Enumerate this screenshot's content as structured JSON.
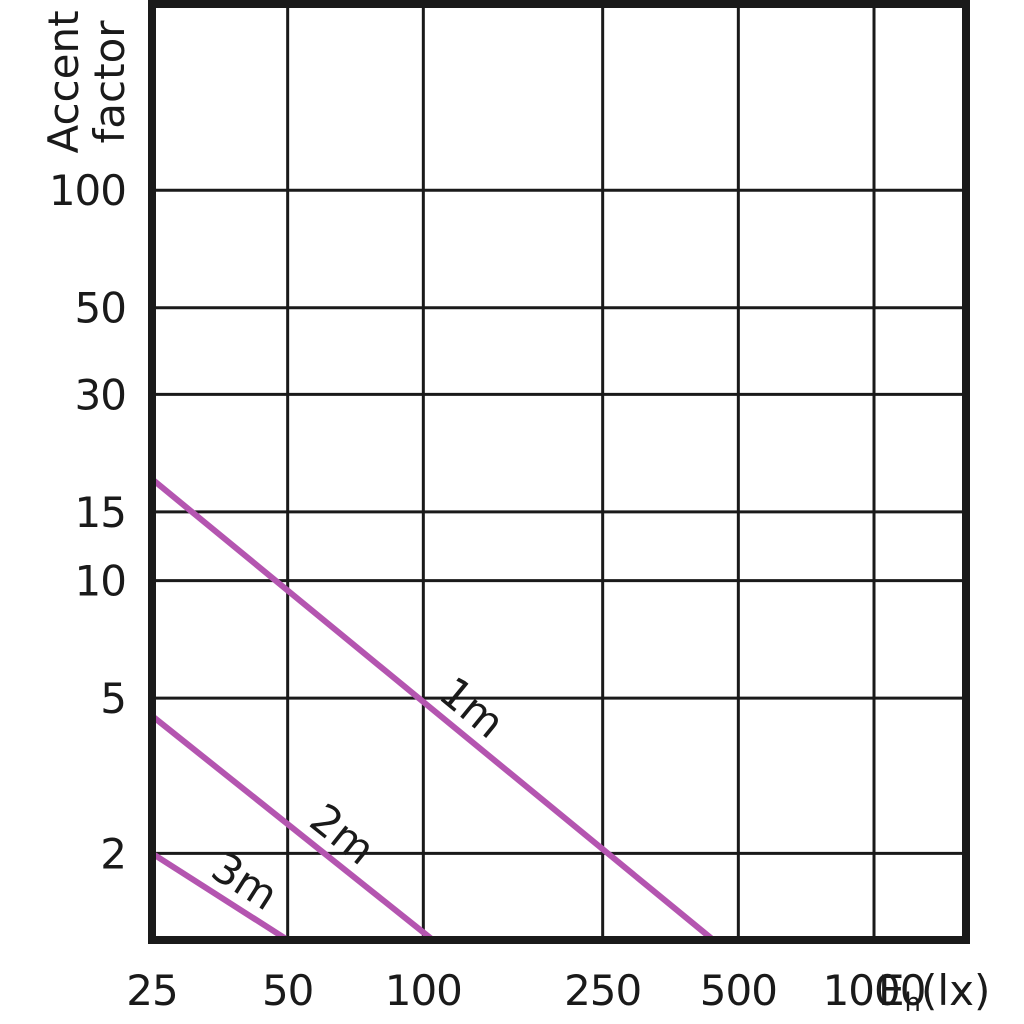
{
  "chart_data": {
    "type": "line",
    "title": "",
    "ylabel_line1": "Accent",
    "ylabel_line2": "factor",
    "xlabel_main": "E",
    "xlabel_sub": "h",
    "xlabel_unit": "(lx)",
    "x_scale": "log",
    "y_scale": "log",
    "xlim": [
      25,
      1600
    ],
    "ylim": [
      1.2,
      300
    ],
    "x_ticks": [
      {
        "value": 25,
        "label": "25"
      },
      {
        "value": 50,
        "label": "50"
      },
      {
        "value": 100,
        "label": "100"
      },
      {
        "value": 250,
        "label": "250"
      },
      {
        "value": 500,
        "label": "500"
      },
      {
        "value": 1000,
        "label": "1000"
      }
    ],
    "y_ticks": [
      {
        "value": 2,
        "label": "2"
      },
      {
        "value": 5,
        "label": "5"
      },
      {
        "value": 10,
        "label": "10"
      },
      {
        "value": 15,
        "label": "15"
      },
      {
        "value": 30,
        "label": "30"
      },
      {
        "value": 50,
        "label": "50"
      },
      {
        "value": 100,
        "label": "100"
      }
    ],
    "grid": true,
    "series": [
      {
        "name": "1m",
        "color": "#b455b0",
        "points": [
          [
            25,
            18.2
          ],
          [
            440,
            1.2
          ]
        ]
      },
      {
        "name": "2m",
        "color": "#b455b0",
        "points": [
          [
            25,
            4.5
          ],
          [
            105,
            1.2
          ]
        ]
      },
      {
        "name": "3m",
        "color": "#b455b0",
        "points": [
          [
            25,
            2.0
          ],
          [
            50,
            1.2
          ]
        ]
      }
    ]
  }
}
